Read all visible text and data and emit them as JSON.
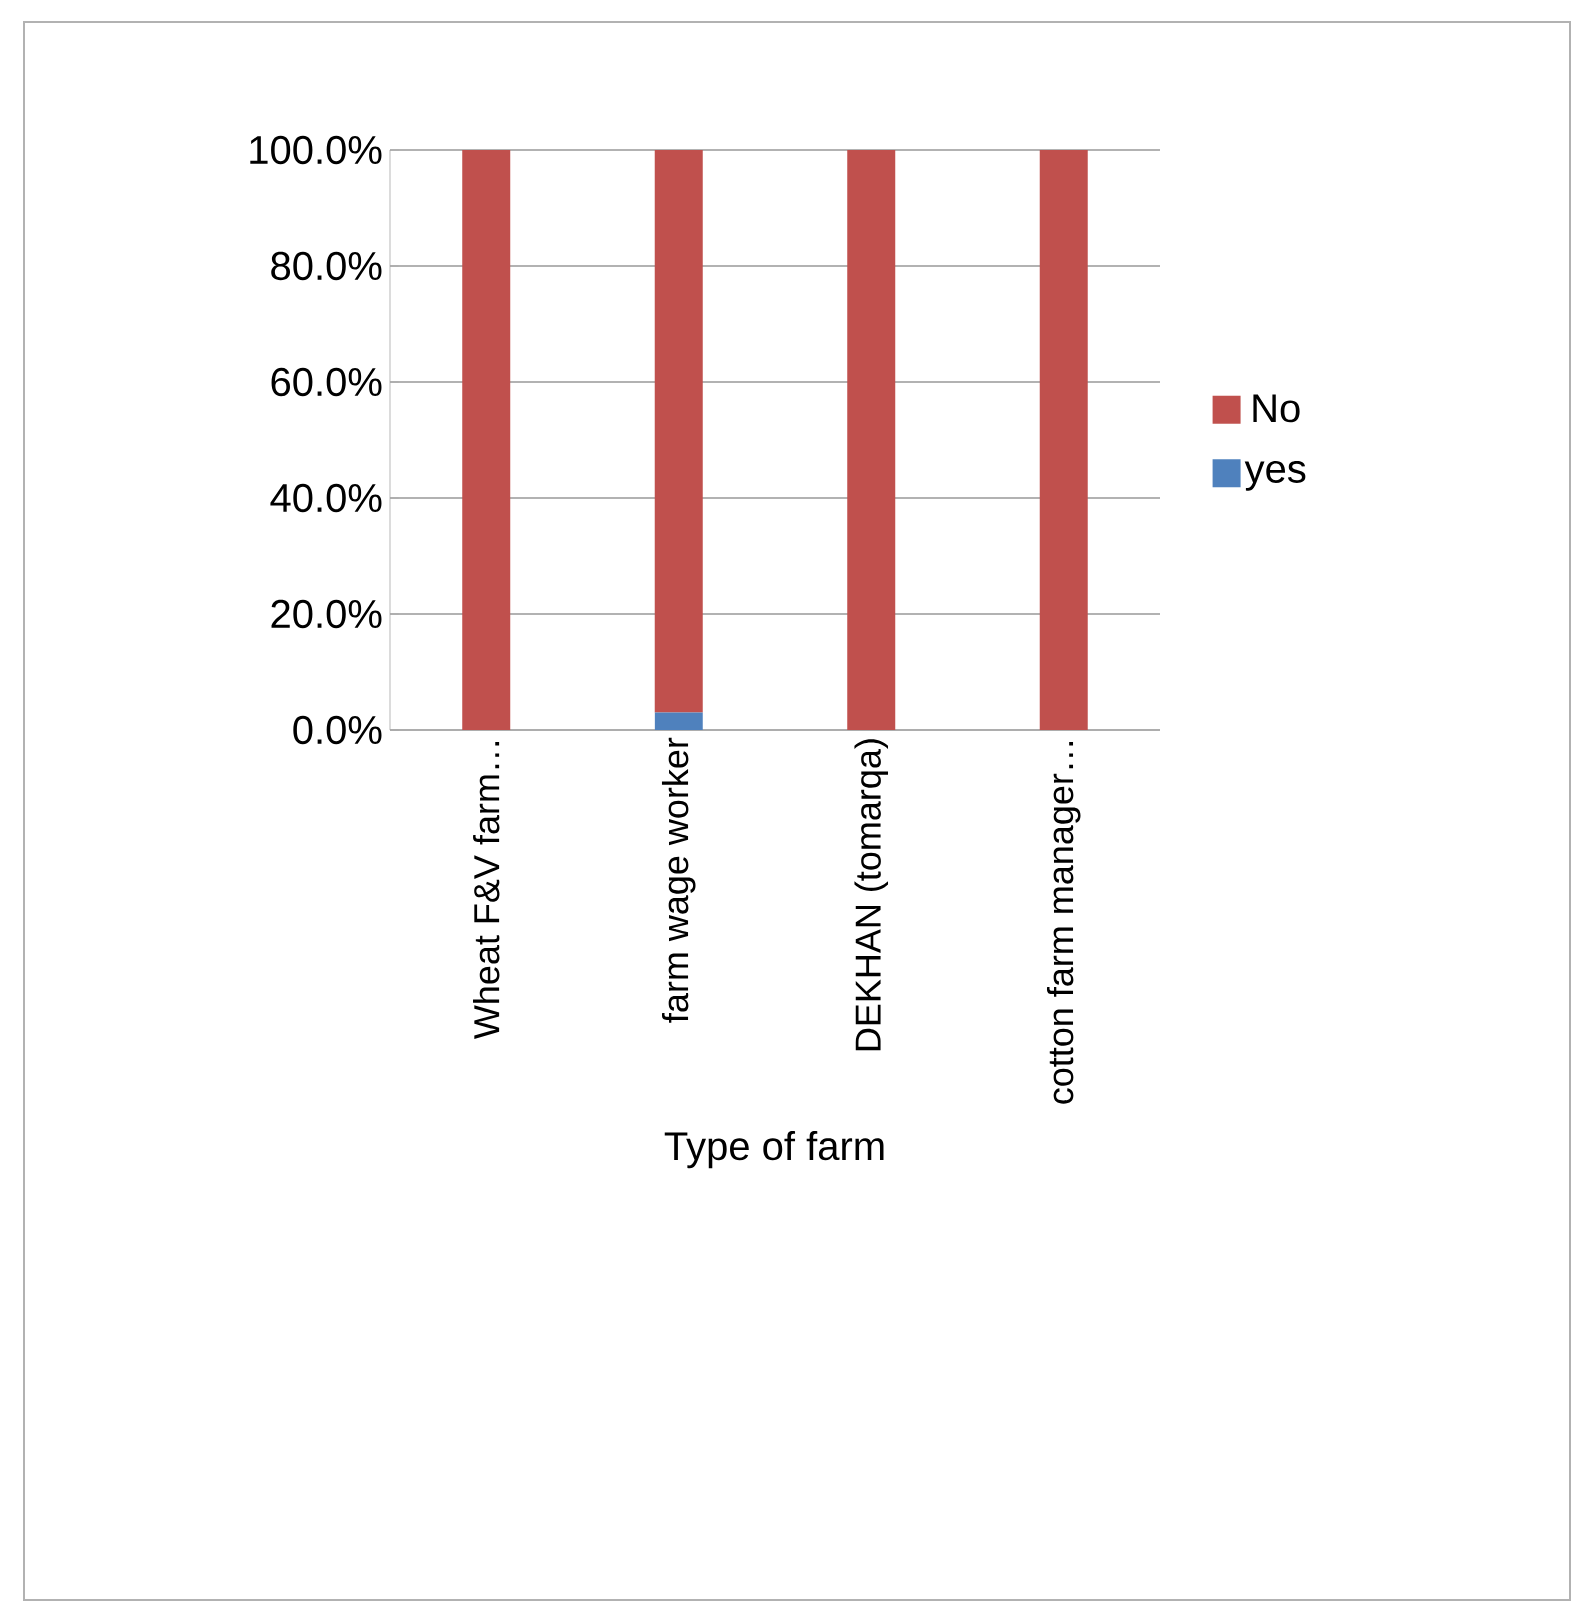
{
  "chart_data": {
    "type": "bar",
    "stacked": true,
    "xlabel": "Type of farm",
    "categories": [
      "Wheat F&V farm…",
      "farm wage worker",
      "DEKHAN (tomarqa)",
      "cotton farm manager…"
    ],
    "series": [
      {
        "name": "yes",
        "color": "#4f81bd",
        "values": [
          0,
          3,
          0,
          0
        ]
      },
      {
        "name": "No",
        "color": "#c0504d",
        "values": [
          100,
          97,
          100,
          100
        ]
      }
    ],
    "ylim": [
      0,
      100
    ],
    "yticks": [
      {
        "value": 0,
        "label": "0.0%"
      },
      {
        "value": 20,
        "label": "20.0%"
      },
      {
        "value": 40,
        "label": "40.0%"
      },
      {
        "value": 60,
        "label": "60.0%"
      },
      {
        "value": 80,
        "label": "80.0%"
      },
      {
        "value": 100,
        "label": "100.0%"
      }
    ],
    "grid": "y",
    "legend": "right"
  }
}
